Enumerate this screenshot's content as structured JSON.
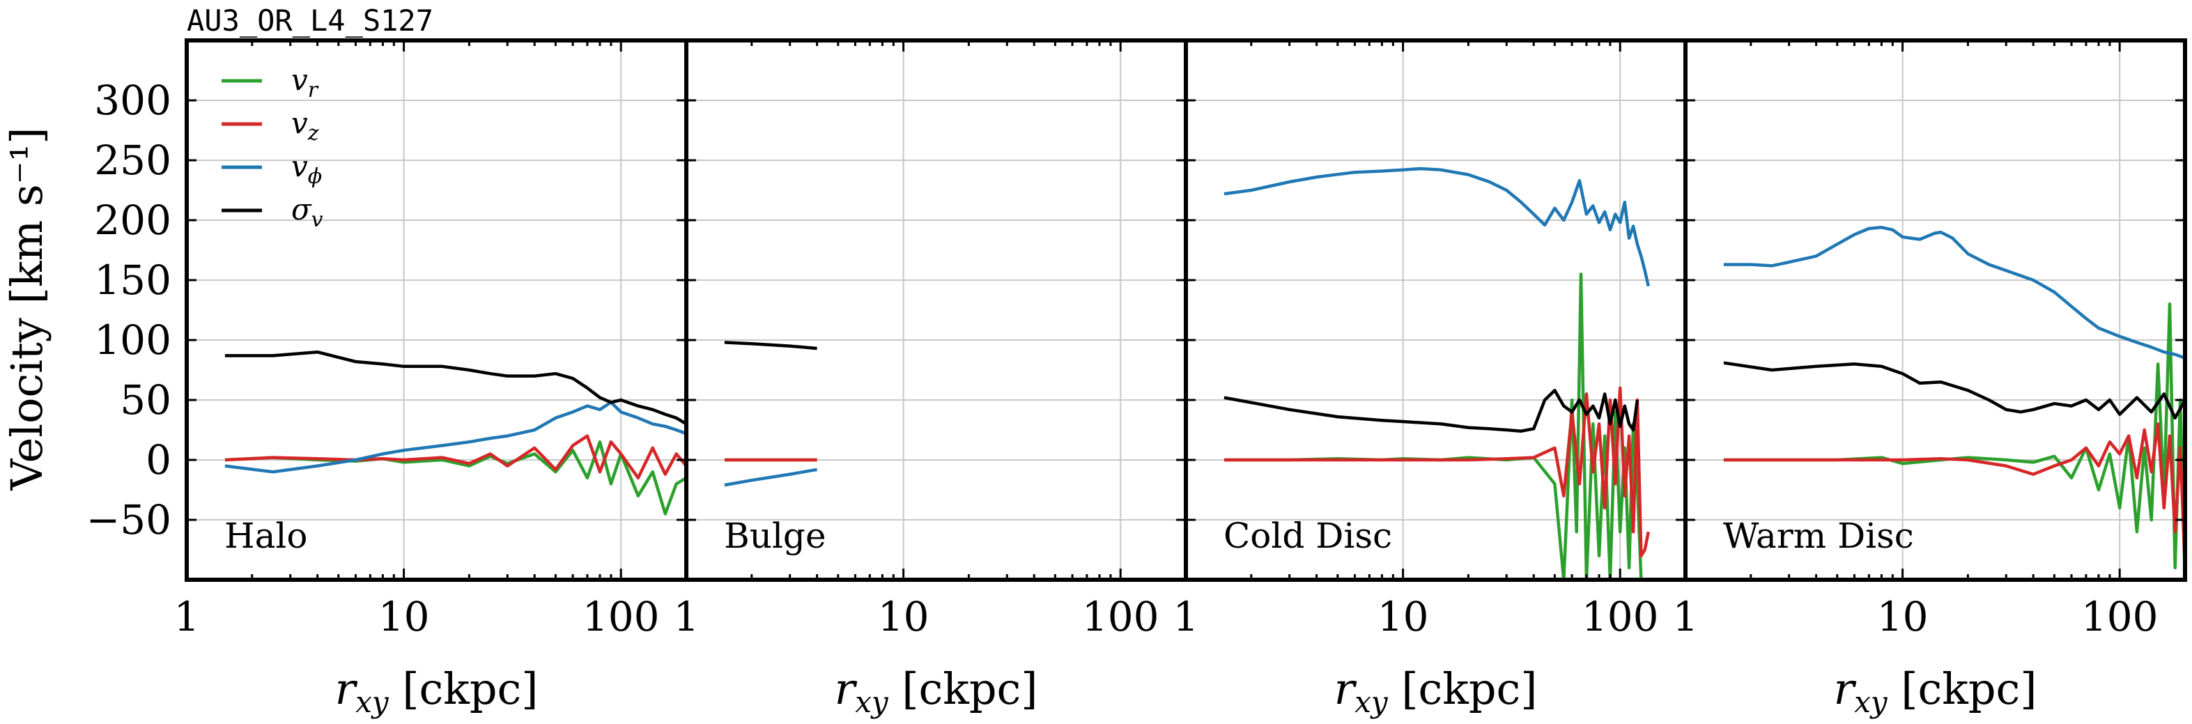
{
  "suptitle": "AU3_OR_L4_S127",
  "ylabel": "Velocity [km s⁻¹]",
  "colors": {
    "v_r": "#2ca02c",
    "v_z": "#d62728",
    "v_phi": "#1f77b4",
    "sigma_v": "#000000"
  },
  "chart_data": [
    {
      "type": "line",
      "panel_label": "Halo",
      "xlabel": "r_xy [ckpc]",
      "xscale": "log",
      "xlim": [
        1,
        200
      ],
      "ylim": [
        -100,
        350
      ],
      "xticks": [
        1,
        10,
        100
      ],
      "xtick_labels": [
        "1",
        "10",
        "100"
      ],
      "yticks": [
        -50,
        0,
        50,
        100,
        150,
        200,
        250,
        300
      ],
      "ytick_labels": [
        "−50",
        "0",
        "50",
        "100",
        "150",
        "200",
        "250",
        "300"
      ],
      "grid": true,
      "legend": {
        "position": "top-left",
        "entries": [
          {
            "symbol": "v",
            "sub": "r",
            "color_key": "v_r"
          },
          {
            "symbol": "v",
            "sub": "z",
            "color_key": "v_z"
          },
          {
            "symbol": "v",
            "sub": "ϕ",
            "color_key": "v_phi"
          },
          {
            "symbol": "σ",
            "sub": "v",
            "color_key": "sigma_v"
          }
        ]
      },
      "series": [
        {
          "key": "v_r",
          "x": [
            1.5,
            2.5,
            4,
            6,
            8,
            10,
            15,
            20,
            25,
            30,
            40,
            50,
            60,
            70,
            80,
            90,
            100,
            120,
            140,
            160,
            180,
            200
          ],
          "y": [
            0,
            2,
            0,
            -1,
            1,
            -2,
            0,
            -5,
            3,
            -3,
            5,
            -10,
            8,
            -15,
            15,
            -20,
            5,
            -30,
            -10,
            -45,
            -20,
            -15
          ]
        },
        {
          "key": "v_z",
          "x": [
            1.5,
            2.5,
            4,
            6,
            8,
            10,
            15,
            20,
            25,
            30,
            40,
            50,
            60,
            70,
            80,
            90,
            100,
            120,
            140,
            160,
            180,
            200
          ],
          "y": [
            0,
            2,
            1,
            0,
            1,
            0,
            2,
            -3,
            5,
            -5,
            10,
            -8,
            12,
            20,
            -10,
            15,
            5,
            -15,
            10,
            -12,
            5,
            -5
          ]
        },
        {
          "key": "v_phi",
          "x": [
            1.5,
            2.5,
            4,
            6,
            8,
            10,
            15,
            20,
            25,
            30,
            40,
            50,
            60,
            70,
            80,
            90,
            100,
            120,
            140,
            160,
            180,
            200
          ],
          "y": [
            -5,
            -10,
            -5,
            0,
            5,
            8,
            12,
            15,
            18,
            20,
            25,
            35,
            40,
            45,
            42,
            48,
            40,
            35,
            30,
            28,
            25,
            22
          ]
        },
        {
          "key": "sigma_v",
          "x": [
            1.5,
            2.5,
            4,
            6,
            8,
            10,
            15,
            20,
            25,
            30,
            40,
            50,
            60,
            70,
            80,
            90,
            100,
            120,
            140,
            160,
            180,
            200
          ],
          "y": [
            87,
            87,
            90,
            82,
            80,
            78,
            78,
            75,
            72,
            70,
            70,
            72,
            68,
            60,
            52,
            48,
            50,
            45,
            42,
            38,
            35,
            30
          ]
        }
      ]
    },
    {
      "type": "line",
      "panel_label": "Bulge",
      "xlabel": "r_xy [ckpc]",
      "xscale": "log",
      "xlim": [
        1,
        200
      ],
      "ylim": [
        -100,
        350
      ],
      "xticks": [
        1,
        10,
        100
      ],
      "xtick_labels": [
        "1",
        "10",
        "100"
      ],
      "grid": true,
      "series": [
        {
          "key": "v_r",
          "x": [
            1.5,
            2,
            3,
            4
          ],
          "y": [
            0,
            0,
            0,
            0
          ]
        },
        {
          "key": "v_z",
          "x": [
            1.5,
            2,
            3,
            4
          ],
          "y": [
            0,
            0,
            0,
            0
          ]
        },
        {
          "key": "v_phi",
          "x": [
            1.5,
            2,
            3,
            4
          ],
          "y": [
            -21,
            -17,
            -12,
            -8
          ]
        },
        {
          "key": "sigma_v",
          "x": [
            1.5,
            2,
            3,
            4
          ],
          "y": [
            98,
            97,
            95,
            93
          ]
        }
      ]
    },
    {
      "type": "line",
      "panel_label": "Cold Disc",
      "xlabel": "r_xy [ckpc]",
      "xscale": "log",
      "xlim": [
        1,
        200
      ],
      "ylim": [
        -100,
        350
      ],
      "xticks": [
        1,
        10,
        100
      ],
      "xtick_labels": [
        "1",
        "10",
        "100"
      ],
      "grid": true,
      "series": [
        {
          "key": "v_r",
          "x": [
            1.5,
            3,
            5,
            8,
            10,
            15,
            20,
            30,
            40,
            50,
            55,
            60,
            63,
            66,
            70,
            75,
            80,
            85,
            90,
            95,
            100,
            105,
            110,
            115,
            120,
            125
          ],
          "y": [
            0,
            0,
            1,
            0,
            1,
            0,
            2,
            0,
            2,
            -20,
            -100,
            50,
            -60,
            155,
            -100,
            30,
            -80,
            20,
            -100,
            40,
            -60,
            10,
            -90,
            30,
            -20,
            -100
          ]
        },
        {
          "key": "v_z",
          "x": [
            1.5,
            3,
            5,
            8,
            10,
            15,
            20,
            30,
            40,
            50,
            55,
            60,
            65,
            70,
            75,
            80,
            85,
            90,
            95,
            100,
            105,
            110,
            115,
            120,
            125,
            130,
            135
          ],
          "y": [
            0,
            0,
            0,
            0,
            0,
            0,
            0,
            1,
            2,
            10,
            -30,
            40,
            -20,
            55,
            -10,
            30,
            -40,
            50,
            -20,
            60,
            -30,
            20,
            -60,
            50,
            -80,
            -75,
            -60
          ]
        },
        {
          "key": "v_phi",
          "x": [
            1.5,
            2,
            3,
            4,
            6,
            8,
            10,
            12,
            15,
            20,
            25,
            30,
            35,
            40,
            45,
            50,
            55,
            60,
            65,
            70,
            75,
            80,
            85,
            90,
            95,
            100,
            105,
            110,
            115,
            120,
            125,
            130,
            135
          ],
          "y": [
            222,
            225,
            232,
            236,
            240,
            241,
            242,
            243,
            242,
            238,
            232,
            225,
            215,
            205,
            196,
            210,
            200,
            215,
            233,
            205,
            212,
            198,
            207,
            192,
            205,
            198,
            215,
            185,
            195,
            180,
            170,
            158,
            145
          ]
        },
        {
          "key": "sigma_v",
          "x": [
            1.5,
            3,
            5,
            8,
            10,
            15,
            20,
            25,
            30,
            35,
            40,
            45,
            50,
            55,
            60,
            65,
            70,
            75,
            80,
            85,
            90,
            95,
            100,
            105,
            110,
            115,
            120
          ],
          "y": [
            52,
            42,
            36,
            33,
            32,
            30,
            27,
            26,
            25,
            24,
            26,
            50,
            58,
            45,
            40,
            50,
            38,
            45,
            35,
            55,
            30,
            50,
            28,
            45,
            30,
            25,
            50
          ]
        }
      ]
    },
    {
      "type": "line",
      "panel_label": "Warm Disc",
      "xlabel": "r_xy [ckpc]",
      "xscale": "log",
      "xlim": [
        1,
        200
      ],
      "ylim": [
        -100,
        350
      ],
      "xticks": [
        1,
        10,
        100
      ],
      "xtick_labels": [
        "1",
        "10",
        "100"
      ],
      "grid": true,
      "series": [
        {
          "key": "v_r",
          "x": [
            1.5,
            3,
            5,
            8,
            10,
            15,
            20,
            30,
            40,
            50,
            60,
            70,
            80,
            90,
            100,
            110,
            120,
            130,
            140,
            150,
            160,
            170,
            180,
            190,
            200
          ],
          "y": [
            0,
            0,
            0,
            2,
            -3,
            0,
            2,
            0,
            -2,
            3,
            -15,
            10,
            -25,
            5,
            -40,
            20,
            -60,
            10,
            -50,
            80,
            -30,
            130,
            -90,
            50,
            -100
          ]
        },
        {
          "key": "v_z",
          "x": [
            1.5,
            3,
            5,
            8,
            10,
            15,
            20,
            30,
            40,
            50,
            60,
            70,
            80,
            90,
            100,
            110,
            120,
            130,
            140,
            150,
            160,
            170,
            180,
            190,
            200
          ],
          "y": [
            0,
            0,
            0,
            0,
            0,
            1,
            0,
            -5,
            -12,
            -5,
            0,
            10,
            -5,
            15,
            5,
            20,
            -15,
            25,
            -10,
            30,
            -40,
            20,
            -60,
            10,
            -90
          ]
        },
        {
          "key": "v_phi",
          "x": [
            1.5,
            2,
            2.5,
            3,
            4,
            5,
            6,
            7,
            8,
            9,
            10,
            12,
            14,
            15,
            17,
            20,
            25,
            30,
            40,
            50,
            60,
            70,
            80,
            100,
            120,
            140,
            160,
            180,
            200
          ],
          "y": [
            163,
            163,
            162,
            165,
            170,
            180,
            188,
            193,
            194,
            192,
            186,
            184,
            189,
            190,
            185,
            172,
            163,
            158,
            150,
            140,
            128,
            118,
            110,
            103,
            98,
            94,
            90,
            88,
            85
          ]
        },
        {
          "key": "sigma_v",
          "x": [
            1.5,
            2.5,
            4,
            6,
            8,
            10,
            12,
            15,
            20,
            25,
            30,
            35,
            40,
            50,
            60,
            70,
            80,
            90,
            100,
            120,
            140,
            160,
            180,
            200
          ],
          "y": [
            81,
            75,
            78,
            80,
            78,
            72,
            64,
            65,
            58,
            50,
            42,
            40,
            42,
            47,
            45,
            50,
            42,
            50,
            38,
            52,
            40,
            55,
            35,
            50
          ]
        }
      ]
    }
  ]
}
